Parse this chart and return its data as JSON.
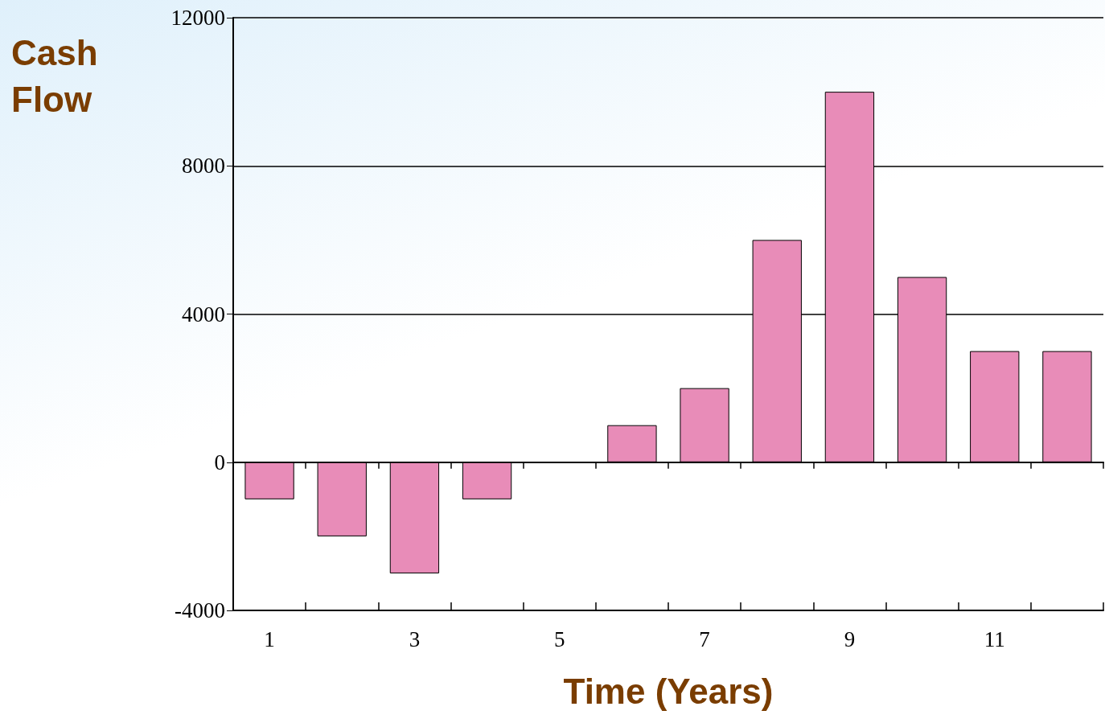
{
  "chart_data": {
    "type": "bar",
    "xlabel": "Time (Years)",
    "ylabel": "Cash Flow",
    "categories": [
      "1",
      null,
      "3",
      null,
      "5",
      null,
      "7",
      null,
      "9",
      null,
      "11",
      null
    ],
    "values": [
      -1000,
      -2000,
      -3000,
      -1000,
      0,
      1000,
      2000,
      6000,
      10000,
      5000,
      3000,
      3000
    ],
    "color": "#e88cb8",
    "ylim": [
      -4000,
      12000
    ],
    "yticks": [
      -4000,
      0,
      4000,
      8000,
      12000
    ],
    "grid": "y"
  }
}
